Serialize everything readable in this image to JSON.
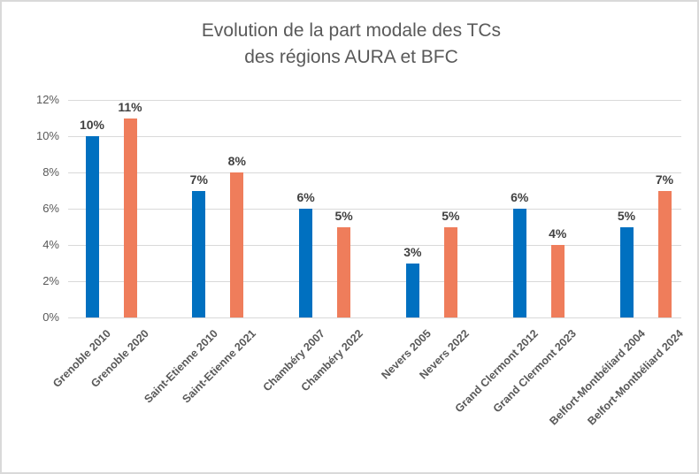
{
  "chart_data": {
    "type": "bar",
    "title": "Evolution de la part modale des TCs des régions AURA et BFC",
    "title_lines": [
      "Evolution de la part modale des TCs",
      "des régions AURA et BFC"
    ],
    "xlabel": "",
    "ylabel": "",
    "ylim": [
      0,
      12
    ],
    "grid": true,
    "legend": false,
    "yticks": [
      {
        "value": 0,
        "label": "0%"
      },
      {
        "value": 2,
        "label": "2%"
      },
      {
        "value": 4,
        "label": "4%"
      },
      {
        "value": 6,
        "label": "6%"
      },
      {
        "value": 8,
        "label": "8%"
      },
      {
        "value": 10,
        "label": "10%"
      },
      {
        "value": 12,
        "label": "12%"
      }
    ],
    "points": [
      {
        "category": "Grenoble 2010",
        "value": 10,
        "value_label": "10%",
        "color_key": "blue"
      },
      {
        "category": "Grenoble 2020",
        "value": 11,
        "value_label": "11%",
        "color_key": "orange"
      },
      {
        "category": "Saint-Etienne 2010",
        "value": 7,
        "value_label": "7%",
        "color_key": "blue"
      },
      {
        "category": "Saint-Etienne 2021",
        "value": 8,
        "value_label": "8%",
        "color_key": "orange"
      },
      {
        "category": "Chambéry 2007",
        "value": 6,
        "value_label": "6%",
        "color_key": "blue"
      },
      {
        "category": "Chambéry 2022",
        "value": 5,
        "value_label": "5%",
        "color_key": "orange"
      },
      {
        "category": "Nevers 2005",
        "value": 3,
        "value_label": "3%",
        "color_key": "blue"
      },
      {
        "category": "Nevers 2022",
        "value": 5,
        "value_label": "5%",
        "color_key": "orange"
      },
      {
        "category": "Grand Clermont 2012",
        "value": 6,
        "value_label": "6%",
        "color_key": "blue"
      },
      {
        "category": "Grand Clermont 2023",
        "value": 4,
        "value_label": "4%",
        "color_key": "orange"
      },
      {
        "category": "Belfort-Montbéliard 2004",
        "value": 5,
        "value_label": "5%",
        "color_key": "blue"
      },
      {
        "category": "Belfort-Montbéliard 2024",
        "value": 7,
        "value_label": "7%",
        "color_key": "orange"
      }
    ],
    "colors": {
      "blue": "#0070C0",
      "orange": "#EF7D5B",
      "gridline": "#D9D9D9",
      "axis_text": "#595959",
      "data_label": "#404040"
    }
  }
}
